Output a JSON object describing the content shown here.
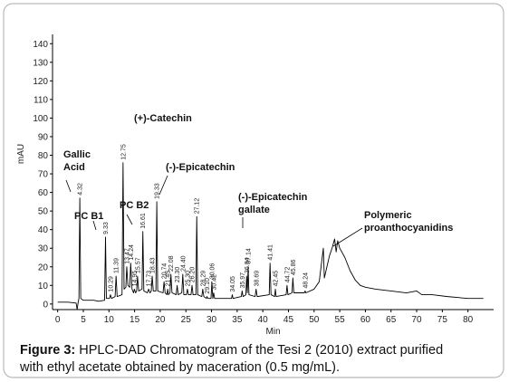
{
  "chart_data": {
    "type": "line",
    "y_label": "mAU",
    "x_label": "Min",
    "color": "#000000",
    "xlim": [
      -1,
      85
    ],
    "ylim": [
      -3,
      145
    ],
    "xticks": [
      0,
      5,
      10,
      15,
      20,
      25,
      30,
      35,
      40,
      45,
      50,
      55,
      60,
      65,
      70,
      75,
      80
    ],
    "yticks": [
      0,
      10,
      20,
      30,
      40,
      50,
      60,
      70,
      80,
      90,
      100,
      110,
      120,
      130,
      140
    ],
    "grid": false,
    "x": [
      0,
      2,
      3.6,
      3.8,
      4.0,
      4.15,
      4.32,
      4.5,
      5,
      7,
      8,
      9.15,
      9.33,
      9.5,
      10.1,
      10.29,
      10.5,
      11.2,
      11.39,
      11.6,
      12.55,
      12.75,
      12.95,
      13.3,
      13.47,
      13.7,
      14.05,
      14.24,
      14.5,
      14.8,
      14.95,
      15.2,
      15.4,
      15.57,
      15.8,
      16.45,
      16.61,
      16.8,
      17.5,
      17.73,
      18.0,
      18.25,
      18.43,
      18.65,
      19.15,
      19.33,
      19.5,
      20.55,
      20.74,
      20.95,
      21.3,
      21.45,
      21.6,
      21.9,
      22.08,
      22.3,
      23.1,
      23.3,
      23.5,
      24.2,
      24.4,
      24.6,
      25.1,
      25.3,
      25.5,
      26.0,
      26.2,
      26.4,
      26.95,
      27.12,
      27.3,
      28.1,
      28.29,
      28.5,
      29.0,
      29.1,
      29.3,
      29.9,
      30.06,
      30.25,
      30.42,
      30.6,
      33.9,
      34.05,
      34.2,
      35.8,
      35.97,
      36.15,
      36.7,
      36.84,
      36.98,
      37.14,
      37.3,
      38.5,
      38.69,
      38.9,
      41.25,
      41.41,
      41.6,
      42.3,
      42.45,
      42.6,
      44.55,
      44.72,
      44.9,
      45.7,
      45.86,
      46.05,
      48.1,
      48.24,
      48.4,
      50,
      51,
      51.8,
      52,
      52.5,
      53,
      53.5,
      54,
      54.3,
      54.6,
      55,
      56,
      57,
      58,
      59,
      60,
      62,
      65,
      68,
      70,
      71,
      73,
      76,
      80,
      83
    ],
    "values": [
      1,
      1,
      0.5,
      -3,
      1,
      3,
      57,
      3,
      2,
      2,
      1.5,
      2,
      36,
      3,
      3,
      5,
      3,
      4,
      15,
      4,
      5,
      76,
      8,
      9,
      20,
      10,
      9,
      22,
      8,
      6,
      8,
      6,
      7,
      15,
      7,
      8,
      39,
      7,
      6,
      8,
      6,
      7,
      15,
      7,
      7,
      55,
      7,
      6,
      12,
      6,
      5,
      8,
      5,
      6,
      16,
      6,
      5,
      10,
      5,
      6,
      16,
      5,
      5,
      8,
      5,
      5,
      10,
      5,
      5,
      47,
      5,
      4,
      8,
      4,
      3,
      4,
      3,
      3,
      12,
      3,
      6,
      3,
      3,
      5,
      3,
      4,
      7,
      4,
      5,
      15,
      6,
      20,
      5,
      4,
      8,
      4,
      5,
      22,
      5,
      4,
      8,
      4,
      5,
      10,
      5,
      6,
      14,
      6,
      6,
      7,
      6,
      8,
      12,
      30,
      14,
      20,
      26,
      30,
      35,
      28,
      34,
      30,
      25,
      18,
      13,
      10,
      9,
      8,
      7,
      6,
      7,
      5,
      5,
      4,
      3,
      3
    ],
    "peaks": [
      {
        "value": 4.32,
        "label": "4.32",
        "height": 57
      },
      {
        "value": 9.33,
        "label": "9.33",
        "height": 36
      },
      {
        "value": 10.29,
        "label": "10.29",
        "height": 5
      },
      {
        "value": 11.39,
        "label": "11.39",
        "height": 15
      },
      {
        "value": 12.75,
        "label": "12.75",
        "height": 76
      },
      {
        "value": 13.47,
        "label": "13.47",
        "height": 20
      },
      {
        "value": 14.24,
        "label": "14.24",
        "height": 22
      },
      {
        "value": 14.95,
        "label": "14.95",
        "height": 8
      },
      {
        "value": 15.57,
        "label": "15.57",
        "height": 15
      },
      {
        "value": 16.61,
        "label": "16.61",
        "height": 39
      },
      {
        "value": 17.73,
        "label": "17.73",
        "height": 8
      },
      {
        "value": 18.43,
        "label": "18.43",
        "height": 15
      },
      {
        "value": 19.33,
        "label": "19.33",
        "height": 55
      },
      {
        "value": 20.74,
        "label": "20.74",
        "height": 12
      },
      {
        "value": 21.45,
        "label": "21.45",
        "height": 8
      },
      {
        "value": 22.08,
        "label": "22.08",
        "height": 16
      },
      {
        "value": 23.3,
        "label": "23.30",
        "height": 10
      },
      {
        "value": 24.4,
        "label": "24.40",
        "height": 16
      },
      {
        "value": 25.3,
        "label": "25.30",
        "height": 8
      },
      {
        "value": 26.2,
        "label": "26.20",
        "height": 10
      },
      {
        "value": 27.12,
        "label": "27.12",
        "height": 47
      },
      {
        "value": 28.29,
        "label": "28.29",
        "height": 8
      },
      {
        "value": 29.1,
        "label": "29.10",
        "height": 4
      },
      {
        "value": 30.06,
        "label": "30.06",
        "height": 12
      },
      {
        "value": 30.42,
        "label": "30.42",
        "height": 6
      },
      {
        "value": 34.05,
        "label": "34.05",
        "height": 5
      },
      {
        "value": 35.97,
        "label": "35.97",
        "height": 7
      },
      {
        "value": 36.84,
        "label": "36.84",
        "height": 15
      },
      {
        "value": 37.14,
        "label": "37.14",
        "height": 20
      },
      {
        "value": 38.69,
        "label": "38.69",
        "height": 8
      },
      {
        "value": 41.41,
        "label": "41.41",
        "height": 22
      },
      {
        "value": 42.45,
        "label": "42.45",
        "height": 8
      },
      {
        "value": 44.72,
        "label": "44.72",
        "height": 10
      },
      {
        "value": 45.86,
        "label": "45.86",
        "height": 14
      },
      {
        "value": 48.24,
        "label": "48.24",
        "height": 7
      }
    ],
    "annotations": [
      {
        "lines": [
          "Gallic",
          "Acid"
        ]
      },
      {
        "lines": [
          "PC B1"
        ]
      },
      {
        "lines": [
          "(+)-Catechin"
        ]
      },
      {
        "lines": [
          "PC B2"
        ]
      },
      {
        "lines": [
          "(-)-Epicatechin"
        ]
      },
      {
        "lines": [
          "(-)-Epicatechin",
          "gallate"
        ]
      },
      {
        "lines": [
          "Polymeric",
          "proanthocyanidins"
        ]
      }
    ],
    "caption": {
      "label": "Figure 3:",
      "lines": [
        " HPLC-DAD Chromatogram of the  Tesi 2 (2010) extract purified",
        "with ethyl acetate obtained by maceration (0.5 mg/mL)."
      ]
    }
  }
}
